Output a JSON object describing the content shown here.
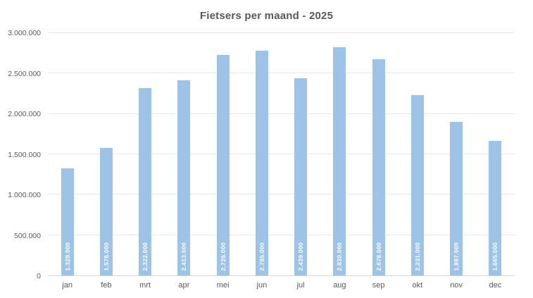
{
  "chart_data": {
    "type": "bar",
    "title": "Fietsers per maand - 2025",
    "categories": [
      "jan",
      "feb",
      "mrt",
      "apr",
      "mei",
      "jun",
      "jul",
      "aug",
      "sep",
      "okt",
      "nov",
      "dec"
    ],
    "values": [
      1329000,
      1576000,
      2322000,
      2413000,
      2726000,
      2785000,
      2439000,
      2830000,
      2678000,
      2231000,
      1897000,
      1665000
    ],
    "value_labels": [
      "1.329.000",
      "1.576.000",
      "2.322.000",
      "2.413.000",
      "2.726.000",
      "2.785.000",
      "2.439.000",
      "2.830.000",
      "2.678.000",
      "2.231.000",
      "1.897.000",
      "1.665.000"
    ],
    "xlabel": "",
    "ylabel": "",
    "ylim": [
      0,
      3000000
    ],
    "y_tick_values": [
      0,
      500000,
      1000000,
      1500000,
      2000000,
      2500000,
      3000000
    ],
    "y_tick_labels": [
      "0",
      "500.000",
      "1.000.000",
      "1.500.000",
      "2.000.000",
      "2.500.000",
      "3.000.000"
    ],
    "grid": "horizontal",
    "legend": "none",
    "data_label_position": "inside-base-rotated",
    "colors": {
      "bar_fill": "#9dc3e6",
      "bar_value_text": "#ffffff",
      "gridline": "#e7e7e7",
      "axis_line": "#d6d6d6",
      "title_text": "#595959",
      "tick_text": "#595959",
      "background": "#ffffff"
    }
  }
}
